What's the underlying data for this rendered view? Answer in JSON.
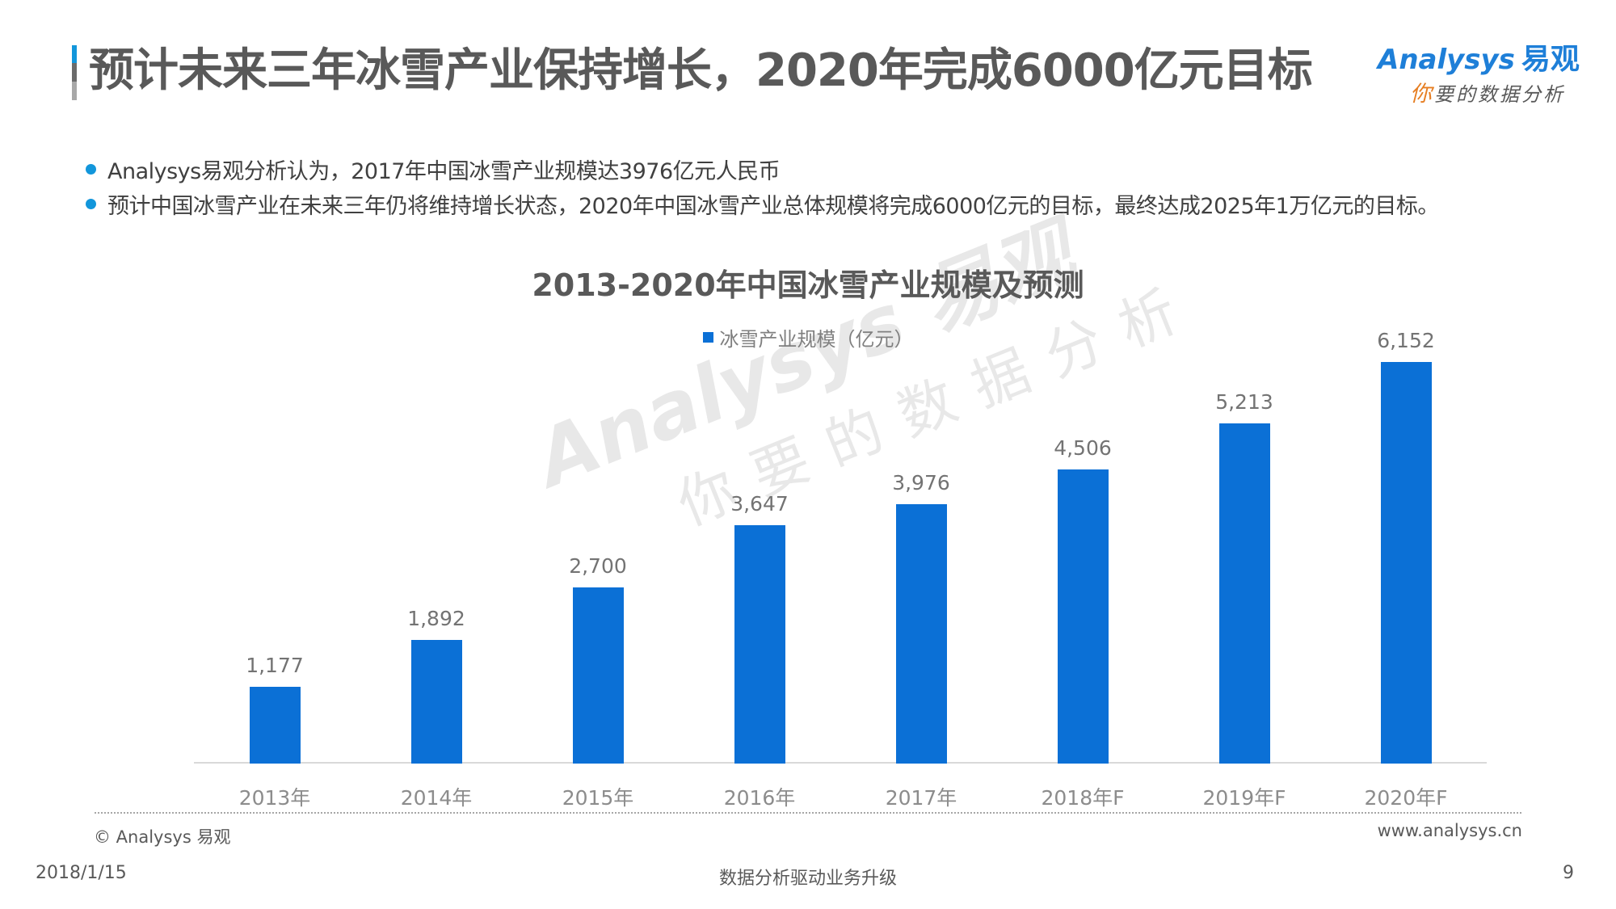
{
  "header": {
    "title": "预计未来三年冰雪产业保持增长，2020年完成6000亿元目标",
    "accent_colors": [
      "#1296db",
      "#6b6b6b",
      "#a8a8a8"
    ],
    "logo": {
      "brand": "Analysys",
      "brand_cn": "易观",
      "tagline_first": "你",
      "tagline_rest": "要的数据分析"
    }
  },
  "bullets": [
    {
      "text": "Analysys易观分析认为，2017年中国冰雪产业规模达3976亿元人民币"
    },
    {
      "text": "预计中国冰雪产业在未来三年仍将维持增长状态，2020年中国冰雪产业总体规模将完成6000亿元的目标，最终达成2025年1万亿元的目标。"
    }
  ],
  "watermark": {
    "line1": "Analysys 易观",
    "line2": "你要的数据分析"
  },
  "chart_data": {
    "type": "bar",
    "title": "2013-2020年中国冰雪产业规模及预测",
    "categories": [
      "2013年",
      "2014年",
      "2015年",
      "2016年",
      "2017年",
      "2018年F",
      "2019年F",
      "2020年F"
    ],
    "series": [
      {
        "name": "冰雪产业规模（亿元）",
        "color": "#0b70d6",
        "values": [
          1177,
          1892,
          2700,
          3647,
          3976,
          4506,
          5213,
          6152
        ],
        "labels": [
          "1,177",
          "1,892",
          "2,700",
          "3,647",
          "3,976",
          "4,506",
          "5,213",
          "6,152"
        ]
      }
    ],
    "xlabel": "",
    "ylabel": "",
    "ylim": [
      0,
      7000
    ],
    "grid": false,
    "legend_position": "top",
    "y_axis_visible": false,
    "data_labels": true
  },
  "footer": {
    "copyright": "© Analysys 易观",
    "website": "www.analysys.cn",
    "date": "2018/1/15",
    "slogan": "数据分析驱动业务升级",
    "page_number": "9"
  }
}
